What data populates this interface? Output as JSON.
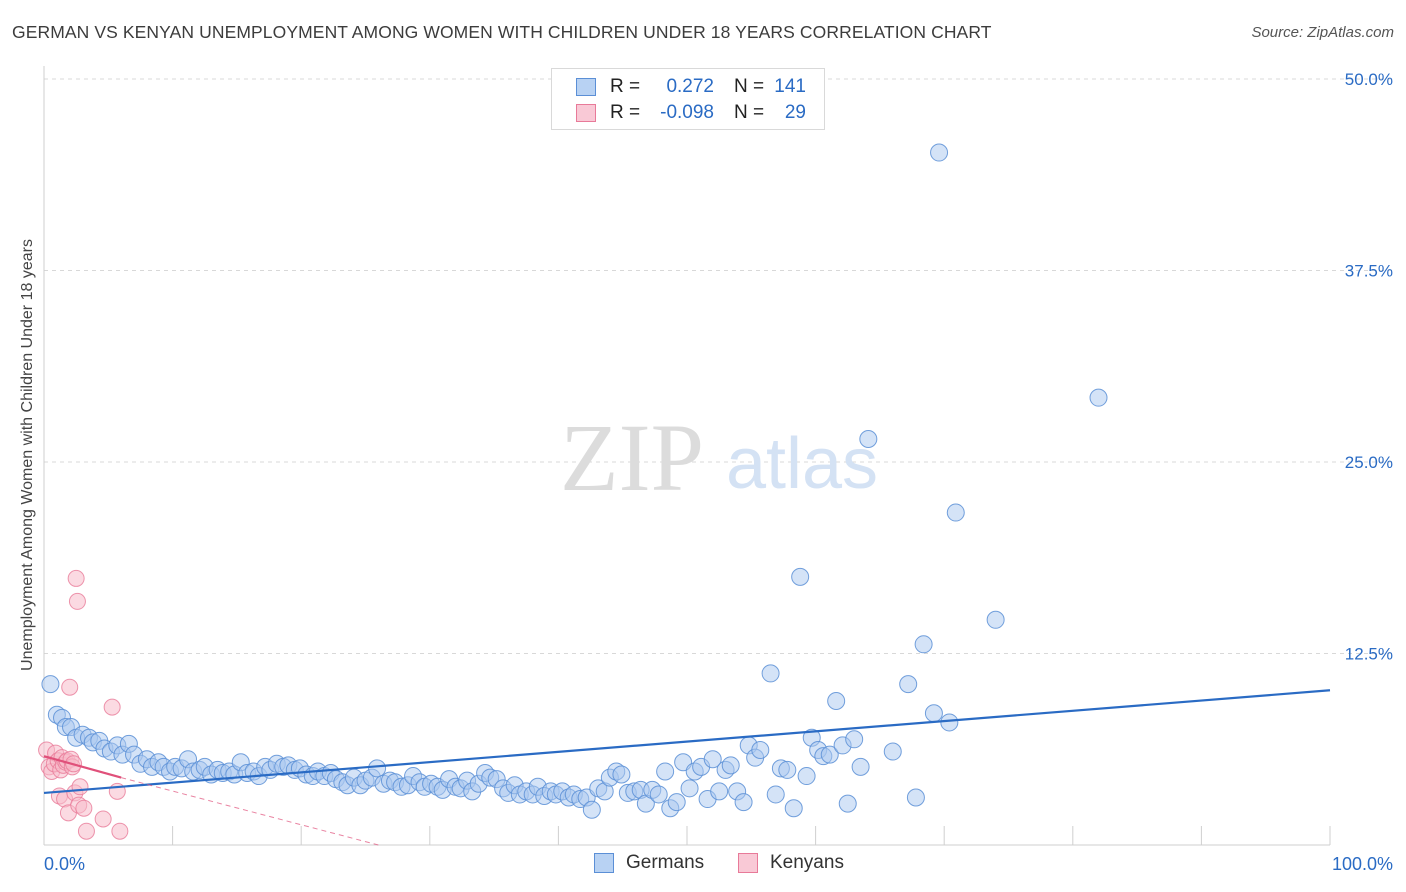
{
  "header": {
    "title": "GERMAN VS KENYAN UNEMPLOYMENT AMONG WOMEN WITH CHILDREN UNDER 18 YEARS CORRELATION CHART",
    "source": "Source: ZipAtlas.com"
  },
  "watermark": {
    "zip": "ZIP",
    "atlas": "atlas"
  },
  "legend": {
    "rows": [
      {
        "r_label": "R =",
        "r_value": "0.272",
        "n_label": "N =",
        "n_value": "141"
      },
      {
        "r_label": "R =",
        "r_value": "-0.098",
        "n_label": "N =",
        "n_value": "29"
      }
    ]
  },
  "bottom_legend": {
    "germans": "Germans",
    "kenyans": "Kenyans"
  },
  "colors": {
    "german_fill": "#a9c8f0",
    "german_stroke": "#5b8fd6",
    "german_line": "#2a6bc4",
    "kenyan_fill": "#f7bccb",
    "kenyan_stroke": "#e87a99",
    "kenyan_line": "#e0507a",
    "axis_label": "#2a6bc4",
    "grid": "#d8d8d8"
  },
  "chart_data": {
    "type": "scatter",
    "title": "GERMAN VS KENYAN UNEMPLOYMENT AMONG WOMEN WITH CHILDREN UNDER 18 YEARS CORRELATION CHART",
    "xlabel": "",
    "ylabel": "Unemployment Among Women with Children Under 18 years",
    "xlim": [
      0,
      100
    ],
    "ylim": [
      0,
      50
    ],
    "x_tick_labels": [
      "0.0%",
      "100.0%"
    ],
    "y_ticks": [
      12.5,
      25.0,
      37.5,
      50.0
    ],
    "y_tick_labels": [
      "12.5%",
      "25.0%",
      "37.5%",
      "50.0%"
    ],
    "grid": "horizontal dashed",
    "legend_placement": "top-center",
    "series": [
      {
        "name": "Germans",
        "r": 0.272,
        "n": 141,
        "trend": {
          "x": [
            0,
            100
          ],
          "y": [
            3.4,
            10.1
          ]
        },
        "points": [
          [
            0.5,
            10.5
          ],
          [
            1.0,
            8.5
          ],
          [
            1.4,
            8.3
          ],
          [
            1.7,
            7.7
          ],
          [
            2.1,
            7.7
          ],
          [
            2.5,
            7.0
          ],
          [
            3.0,
            7.2
          ],
          [
            3.5,
            7.0
          ],
          [
            3.8,
            6.7
          ],
          [
            4.3,
            6.8
          ],
          [
            4.7,
            6.3
          ],
          [
            5.2,
            6.1
          ],
          [
            5.7,
            6.5
          ],
          [
            6.1,
            5.9
          ],
          [
            6.6,
            6.6
          ],
          [
            7.0,
            5.9
          ],
          [
            7.5,
            5.3
          ],
          [
            8.0,
            5.6
          ],
          [
            8.4,
            5.1
          ],
          [
            8.9,
            5.4
          ],
          [
            9.3,
            5.1
          ],
          [
            9.8,
            4.8
          ],
          [
            10.2,
            5.1
          ],
          [
            10.7,
            5.0
          ],
          [
            11.2,
            5.6
          ],
          [
            11.6,
            4.8
          ],
          [
            12.1,
            4.9
          ],
          [
            12.5,
            5.1
          ],
          [
            13.0,
            4.6
          ],
          [
            13.5,
            4.9
          ],
          [
            13.9,
            4.7
          ],
          [
            14.4,
            4.8
          ],
          [
            14.8,
            4.6
          ],
          [
            15.3,
            5.4
          ],
          [
            15.8,
            4.7
          ],
          [
            16.3,
            4.8
          ],
          [
            16.7,
            4.5
          ],
          [
            17.2,
            5.1
          ],
          [
            17.6,
            4.9
          ],
          [
            18.1,
            5.3
          ],
          [
            18.6,
            5.1
          ],
          [
            19.0,
            5.2
          ],
          [
            19.5,
            4.9
          ],
          [
            19.9,
            5.0
          ],
          [
            20.4,
            4.6
          ],
          [
            20.9,
            4.5
          ],
          [
            21.3,
            4.8
          ],
          [
            21.8,
            4.5
          ],
          [
            22.3,
            4.7
          ],
          [
            22.7,
            4.3
          ],
          [
            23.2,
            4.1
          ],
          [
            23.6,
            3.9
          ],
          [
            24.1,
            4.4
          ],
          [
            24.6,
            3.9
          ],
          [
            25.0,
            4.2
          ],
          [
            25.5,
            4.4
          ],
          [
            25.9,
            5.0
          ],
          [
            26.4,
            4.0
          ],
          [
            26.9,
            4.2
          ],
          [
            27.3,
            4.1
          ],
          [
            27.8,
            3.8
          ],
          [
            28.3,
            3.9
          ],
          [
            28.7,
            4.5
          ],
          [
            29.2,
            4.1
          ],
          [
            29.6,
            3.8
          ],
          [
            30.1,
            4.0
          ],
          [
            30.6,
            3.8
          ],
          [
            31.0,
            3.6
          ],
          [
            31.5,
            4.3
          ],
          [
            32.0,
            3.8
          ],
          [
            32.4,
            3.7
          ],
          [
            32.9,
            4.2
          ],
          [
            33.3,
            3.5
          ],
          [
            33.8,
            4.0
          ],
          [
            34.3,
            4.7
          ],
          [
            34.7,
            4.4
          ],
          [
            35.2,
            4.3
          ],
          [
            35.7,
            3.7
          ],
          [
            36.1,
            3.4
          ],
          [
            36.6,
            3.9
          ],
          [
            37.0,
            3.3
          ],
          [
            37.5,
            3.5
          ],
          [
            38.0,
            3.3
          ],
          [
            38.4,
            3.8
          ],
          [
            38.9,
            3.2
          ],
          [
            39.4,
            3.5
          ],
          [
            39.8,
            3.3
          ],
          [
            40.3,
            3.5
          ],
          [
            40.8,
            3.1
          ],
          [
            41.2,
            3.3
          ],
          [
            41.7,
            3.0
          ],
          [
            42.2,
            3.1
          ],
          [
            42.6,
            2.3
          ],
          [
            43.1,
            3.7
          ],
          [
            43.6,
            3.5
          ],
          [
            44.0,
            4.4
          ],
          [
            44.5,
            4.8
          ],
          [
            44.9,
            4.6
          ],
          [
            45.4,
            3.4
          ],
          [
            45.9,
            3.5
          ],
          [
            46.4,
            3.6
          ],
          [
            46.8,
            2.7
          ],
          [
            47.3,
            3.6
          ],
          [
            47.8,
            3.3
          ],
          [
            48.3,
            4.8
          ],
          [
            48.7,
            2.4
          ],
          [
            49.2,
            2.8
          ],
          [
            49.7,
            5.4
          ],
          [
            50.2,
            3.7
          ],
          [
            50.6,
            4.8
          ],
          [
            51.1,
            5.1
          ],
          [
            51.6,
            3.0
          ],
          [
            52.0,
            5.6
          ],
          [
            52.5,
            3.5
          ],
          [
            53.0,
            4.9
          ],
          [
            53.4,
            5.2
          ],
          [
            53.9,
            3.5
          ],
          [
            54.4,
            2.8
          ],
          [
            54.8,
            6.5
          ],
          [
            55.3,
            5.7
          ],
          [
            55.7,
            6.2
          ],
          [
            56.5,
            11.2
          ],
          [
            56.9,
            3.3
          ],
          [
            57.3,
            5.0
          ],
          [
            57.8,
            4.9
          ],
          [
            58.3,
            2.4
          ],
          [
            58.8,
            17.5
          ],
          [
            59.3,
            4.5
          ],
          [
            59.7,
            7.0
          ],
          [
            60.2,
            6.2
          ],
          [
            60.6,
            5.8
          ],
          [
            61.1,
            5.9
          ],
          [
            61.6,
            9.4
          ],
          [
            62.1,
            6.5
          ],
          [
            62.5,
            2.7
          ],
          [
            63.0,
            6.9
          ],
          [
            63.5,
            5.1
          ],
          [
            64.1,
            26.5
          ],
          [
            66.0,
            6.1
          ],
          [
            67.2,
            10.5
          ],
          [
            67.8,
            3.1
          ],
          [
            68.4,
            13.1
          ],
          [
            69.2,
            8.6
          ],
          [
            69.6,
            45.2
          ],
          [
            70.4,
            8.0
          ],
          [
            70.9,
            21.7
          ],
          [
            74.0,
            14.7
          ],
          [
            82.0,
            29.2
          ]
        ]
      },
      {
        "name": "Kenyans",
        "r": -0.098,
        "n": 29,
        "trend": {
          "x": [
            0,
            6.0
          ],
          "y": [
            5.8,
            4.4
          ]
        },
        "trend_extension": {
          "x": [
            6.0,
            26.0
          ],
          "y": [
            4.4,
            0
          ]
        },
        "points": [
          [
            0.2,
            6.2
          ],
          [
            0.4,
            5.1
          ],
          [
            0.6,
            4.8
          ],
          [
            0.8,
            5.3
          ],
          [
            0.9,
            6.0
          ],
          [
            1.1,
            5.5
          ],
          [
            1.2,
            3.2
          ],
          [
            1.3,
            4.9
          ],
          [
            1.4,
            5.7
          ],
          [
            1.5,
            5.2
          ],
          [
            1.6,
            3.0
          ],
          [
            1.7,
            5.4
          ],
          [
            1.8,
            5.5
          ],
          [
            1.9,
            2.1
          ],
          [
            2.0,
            10.3
          ],
          [
            2.1,
            5.6
          ],
          [
            2.2,
            5.1
          ],
          [
            2.3,
            5.3
          ],
          [
            2.4,
            3.4
          ],
          [
            2.5,
            17.4
          ],
          [
            2.6,
            15.9
          ],
          [
            2.7,
            2.6
          ],
          [
            2.8,
            3.8
          ],
          [
            3.1,
            2.4
          ],
          [
            3.3,
            0.9
          ],
          [
            4.6,
            1.7
          ],
          [
            5.3,
            9.0
          ],
          [
            5.7,
            3.5
          ],
          [
            5.9,
            0.9
          ]
        ]
      }
    ]
  }
}
